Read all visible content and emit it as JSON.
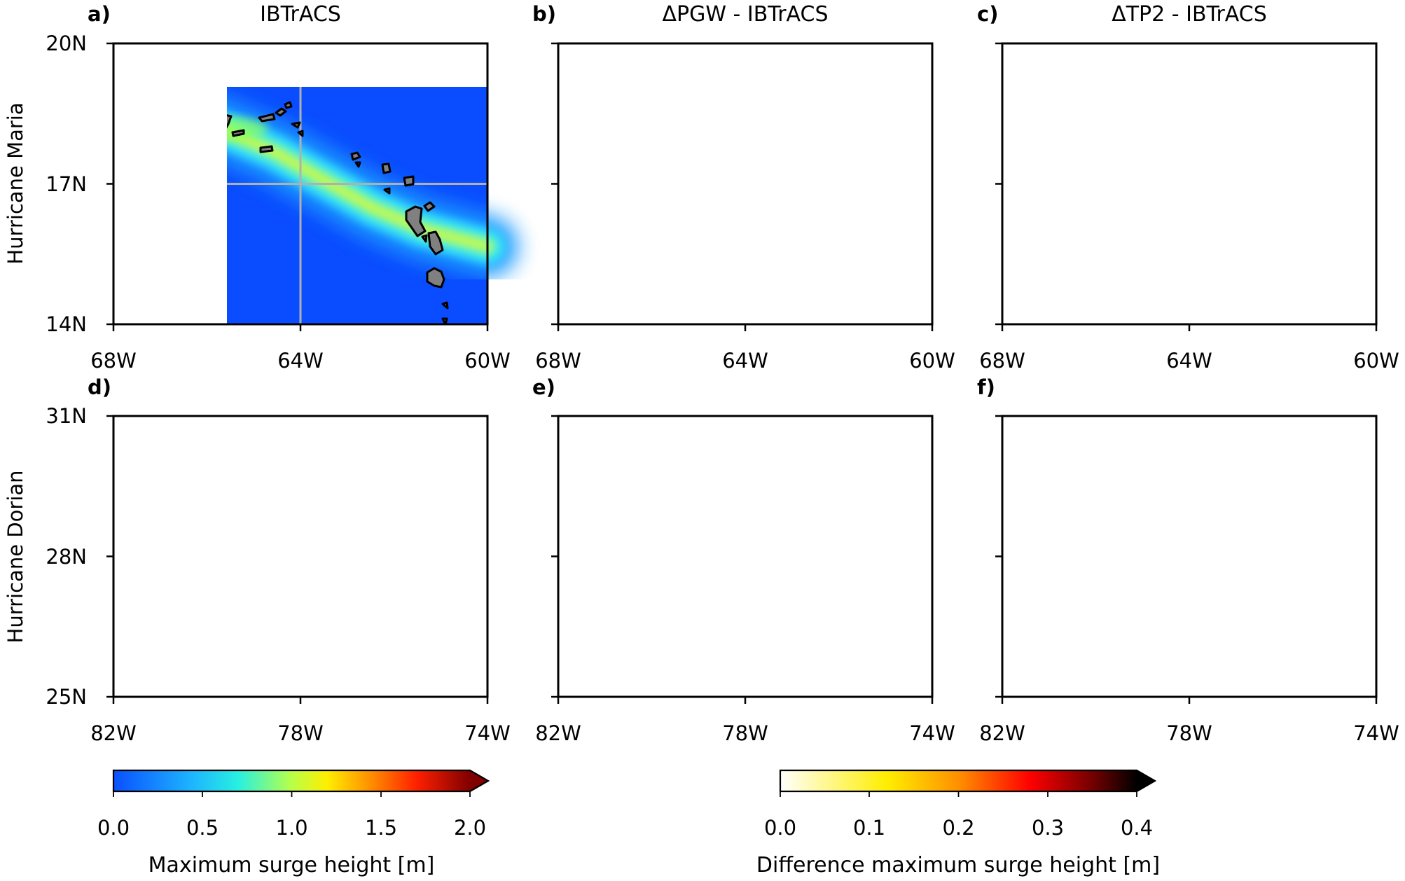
{
  "panels": [
    {
      "label": "a)",
      "title": "IBTrACS",
      "storm": "maria",
      "scheme": "jet",
      "strength": 1.0
    },
    {
      "label": "b)",
      "title": "ΔPGW - IBTrACS",
      "storm": "maria",
      "scheme": "hot",
      "strength": 0.45
    },
    {
      "label": "c)",
      "title": "ΔTP2 - IBTrACS",
      "storm": "maria",
      "scheme": "hot",
      "strength": 0.75
    },
    {
      "label": "d)",
      "title": "",
      "storm": "dorian",
      "scheme": "jet",
      "strength": 1.0
    },
    {
      "label": "e)",
      "title": "",
      "storm": "dorian",
      "scheme": "hot",
      "strength": 0.5
    },
    {
      "label": "f)",
      "title": "",
      "storm": "dorian",
      "scheme": "hot",
      "strength": 0.85
    }
  ],
  "rows": [
    {
      "name": "Hurricane Maria",
      "lat_ticks": [
        "20N",
        "17N",
        "14N"
      ],
      "lon_ticks": [
        "68W",
        "64W",
        "60W"
      ],
      "lat_range": [
        14,
        20
      ],
      "lon_range": [
        -68,
        -60
      ]
    },
    {
      "name": "Hurricane Dorian",
      "lat_ticks": [
        "31N",
        "28N",
        "25N"
      ],
      "lon_ticks": [
        "82W",
        "78W",
        "74W"
      ],
      "lat_range": [
        25,
        31
      ],
      "lon_range": [
        -82,
        -74
      ]
    }
  ],
  "colorbars": [
    {
      "id": "surge",
      "label": "Maximum surge height [m]",
      "ticks": [
        "0.0",
        "0.5",
        "1.0",
        "1.5",
        "2.0"
      ],
      "range": [
        0,
        2.0
      ],
      "scheme": "jet",
      "extend": "max"
    },
    {
      "id": "diff",
      "label": "Difference maximum surge height [m]",
      "ticks": [
        "0.0",
        "0.1",
        "0.2",
        "0.3",
        "0.4"
      ],
      "range": [
        0,
        0.4
      ],
      "scheme": "hot",
      "extend": "max"
    }
  ],
  "colors": {
    "land": "#808080",
    "coast": "#000000",
    "grid": "#b0b0b0",
    "jet_base": "#0a4cff"
  }
}
